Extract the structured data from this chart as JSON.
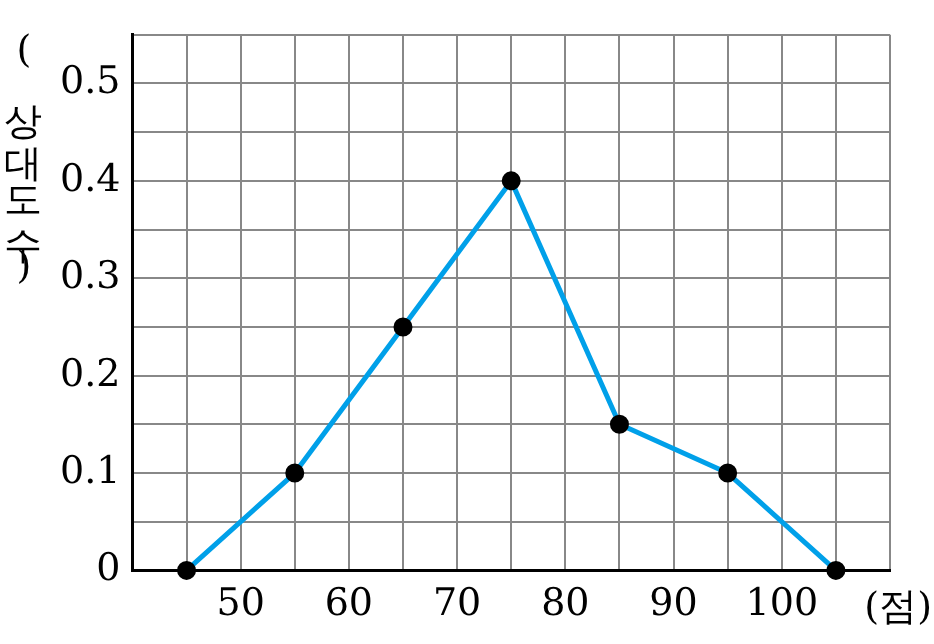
{
  "chart_data": {
    "type": "line",
    "xlabel": "(점)",
    "ylabel": "(상대도수)",
    "x": [
      45,
      55,
      65,
      75,
      85,
      95,
      105
    ],
    "series": [
      {
        "color": "#00a0e9",
        "values": [
          0,
          0.1,
          0.25,
          0.4,
          0.15,
          0.1,
          0
        ]
      }
    ],
    "xlim": [
      40,
      110
    ],
    "xticks": [
      {
        "value": 40,
        "label": null
      },
      {
        "value": 45,
        "label": null
      },
      50,
      {
        "value": 55,
        "label": null
      },
      60,
      {
        "value": 65,
        "label": null
      },
      70,
      {
        "value": 75,
        "label": null
      },
      80,
      {
        "value": 85,
        "label": null
      },
      90,
      {
        "value": 95,
        "label": null
      },
      100,
      {
        "value": 105,
        "label": null
      },
      {
        "value": 110,
        "label": null
      }
    ],
    "ylim": [
      0,
      0.55
    ],
    "yticks": [
      0,
      {
        "value": 0.05,
        "label": null
      },
      0.1,
      {
        "value": 0.15,
        "label": null
      },
      0.2,
      {
        "value": 0.25,
        "label": null
      },
      0.3,
      {
        "value": 0.35,
        "label": null
      },
      0.4,
      {
        "value": 0.45,
        "label": null
      },
      0.5,
      {
        "value": 0.55,
        "label": null
      }
    ],
    "grid": true,
    "marker": "circle",
    "line_style": "solid",
    "legend": false
  }
}
